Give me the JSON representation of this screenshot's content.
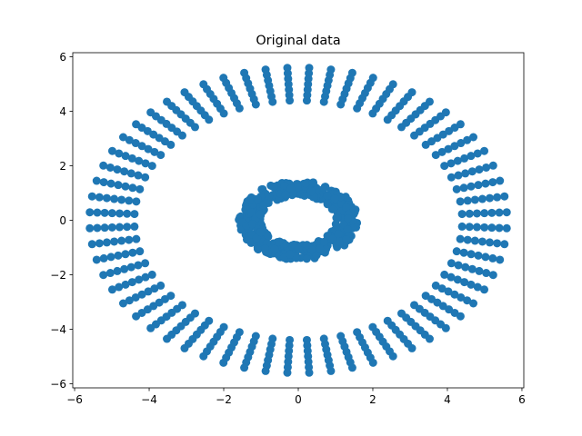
{
  "chart_data": {
    "type": "scatter",
    "title": "Original data",
    "xlabel": "",
    "ylabel": "",
    "xlim": [
      -6.05,
      6.05
    ],
    "ylim": [
      -6.15,
      6.15
    ],
    "xticks": [
      -6,
      -4,
      -2,
      0,
      2,
      4,
      6
    ],
    "yticks": [
      -6,
      -4,
      -2,
      0,
      2,
      4,
      6
    ],
    "grid": false,
    "marker_color": "#1f77b4",
    "series": [
      {
        "name": "outer ring",
        "description_values": {
          "spokes": 60,
          "radii": [
            4.4,
            4.6,
            4.8,
            5.0,
            5.2,
            5.4,
            5.6
          ]
        }
      },
      {
        "name": "inner ring",
        "description_values": {
          "radius_x_range": [
            1.0,
            1.6
          ],
          "radius_y_range": [
            0.9,
            1.45
          ],
          "points": 500
        }
      }
    ]
  }
}
